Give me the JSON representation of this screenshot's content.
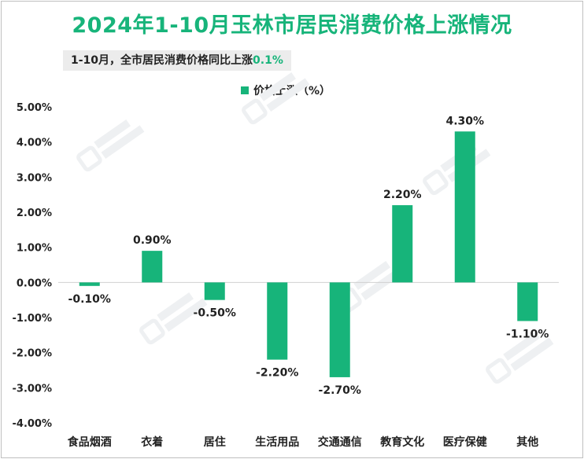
{
  "title": "2024年1-10月玉林市居民消费价格上涨情况",
  "subtitle": {
    "prefix": "1-10月，全市居民消费价格同比上涨",
    "highlight": "0.1%"
  },
  "colors": {
    "accent": "#17b47a",
    "bar": "#17b47a",
    "text": "#222222",
    "axis": "#d0d0d0"
  },
  "chart_data": {
    "type": "bar",
    "title": "2024年1-10月玉林市居民消费价格上涨情况",
    "legend": "价格上涨（%）",
    "legend_position": "top-center",
    "categories": [
      "食品烟酒",
      "衣着",
      "居住",
      "生活用品",
      "交通通信",
      "教育文化",
      "医疗保健",
      "其他"
    ],
    "series": [
      {
        "name": "价格上涨（%）",
        "values": [
          -0.1,
          0.9,
          -0.5,
          -2.2,
          -2.7,
          2.2,
          4.3,
          -1.1
        ],
        "labels": [
          "-0.10%",
          "0.90%",
          "-0.50%",
          "-2.20%",
          "-2.70%",
          "2.20%",
          "4.30%",
          "-1.10%"
        ]
      }
    ],
    "ylim": [
      -4,
      5
    ],
    "yticks": [
      5,
      4,
      3,
      2,
      1,
      0,
      -1,
      -2,
      -3,
      -4
    ],
    "ytick_labels": [
      "5.00%",
      "4.00%",
      "3.00%",
      "2.00%",
      "1.00%",
      "0.00%",
      "-1.00%",
      "-2.00%",
      "-3.00%",
      "-4.00%"
    ],
    "grid": false
  }
}
